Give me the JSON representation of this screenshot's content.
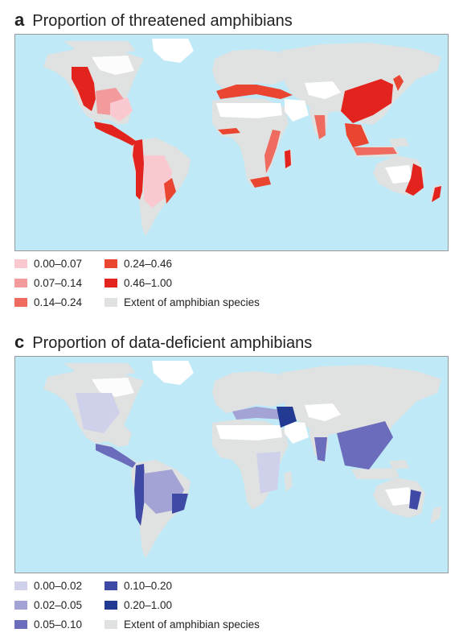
{
  "panels": [
    {
      "letter": "a",
      "title": "Proportion of threatened amphibians",
      "legend": [
        {
          "label": "0.00–0.07",
          "color": "#f9c9cf"
        },
        {
          "label": "0.07–0.14",
          "color": "#f39a9c"
        },
        {
          "label": "0.14–0.24",
          "color": "#ef6b60"
        },
        {
          "label": "0.24–0.46",
          "color": "#ea4530"
        },
        {
          "label": "0.46–1.00",
          "color": "#e3241e"
        },
        {
          "label": "Extent of amphibian species",
          "color": "#e0e1e1"
        }
      ]
    },
    {
      "letter": "c",
      "title": "Proportion of data-deficient amphibians",
      "legend": [
        {
          "label": "0.00–0.02",
          "color": "#cfd0ea"
        },
        {
          "label": "0.02–0.05",
          "color": "#a3a3d6"
        },
        {
          "label": "0.05–0.10",
          "color": "#6b6cbc"
        },
        {
          "label": "0.10–0.20",
          "color": "#3f4aa6"
        },
        {
          "label": "0.20–1.00",
          "color": "#233a92"
        },
        {
          "label": "Extent of amphibian species",
          "color": "#e0e1e1"
        }
      ]
    }
  ],
  "colors": {
    "ocean": "#bfe9f6",
    "land_no_species": "#ffffff",
    "land": "#e0e1e1",
    "border": "#999999"
  }
}
